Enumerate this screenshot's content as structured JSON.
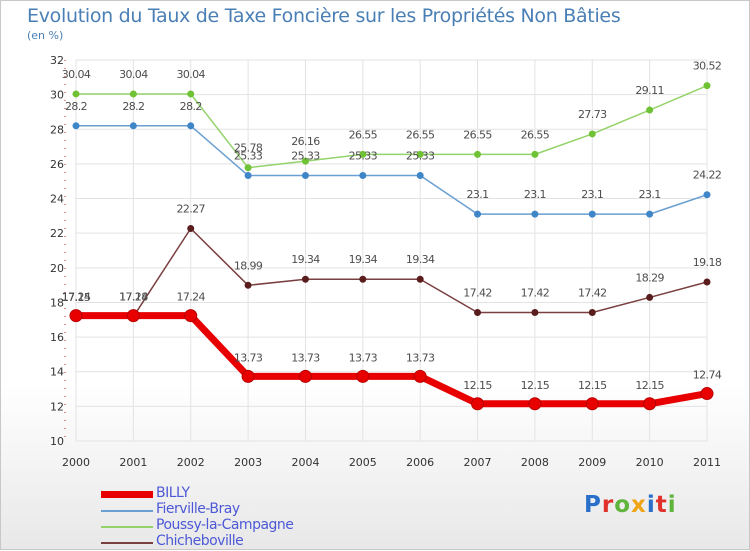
{
  "title": "Evolution du Taux de Taxe Foncière sur les Propriétés Non Bâties",
  "subtitle": "(en %)",
  "logo": {
    "text": "Proxiti",
    "letter_colors": [
      "#2a6fc9",
      "#e0312c",
      "#5fb43b",
      "#f0a516",
      "#2a6fc9",
      "#e0312c",
      "#5fb43b"
    ]
  },
  "chart_data": {
    "type": "line",
    "title": "Evolution du Taux de Taxe Foncière sur les Propriétés Non Bâties",
    "ylabel": "(en %)",
    "xlabel": "",
    "x": [
      "2000",
      "2001",
      "2002",
      "2003",
      "2004",
      "2005",
      "2006",
      "2007",
      "2008",
      "2009",
      "2010",
      "2011"
    ],
    "ylim": [
      10,
      32
    ],
    "yticks": [
      "10",
      "12",
      "14",
      "16",
      "18",
      "20",
      "22",
      "24",
      "26",
      "28",
      "30",
      "32"
    ],
    "series": [
      {
        "name": "BILLY",
        "color": "#e80000",
        "marker": "#b80000",
        "thick": true,
        "values": [
          17.24,
          17.24,
          17.24,
          13.73,
          13.73,
          13.73,
          13.73,
          12.15,
          12.15,
          12.15,
          12.15,
          12.74
        ],
        "labels": [
          "17.24",
          "17.24",
          "17.24",
          "13.73",
          "13.73",
          "13.73",
          "13.73",
          "12.15",
          "12.15",
          "12.15",
          "12.15",
          "12.74"
        ]
      },
      {
        "name": "Fierville-Bray",
        "color": "#6a9fd1",
        "marker": "#3f86c8",
        "thick": false,
        "values": [
          28.2,
          28.2,
          28.2,
          25.33,
          25.33,
          25.33,
          25.33,
          23.1,
          23.1,
          23.1,
          23.1,
          24.22
        ],
        "labels": [
          "28.2",
          "28.2",
          "28.2",
          "25.33",
          "25.33",
          "25.33",
          "25.33",
          "23.1",
          "23.1",
          "23.1",
          "23.1",
          "24.22"
        ]
      },
      {
        "name": "Poussy-la-Campagne",
        "color": "#93d36a",
        "marker": "#6fc234",
        "thick": false,
        "values": [
          30.04,
          30.04,
          30.04,
          25.78,
          26.16,
          26.55,
          26.55,
          26.55,
          26.55,
          27.73,
          29.11,
          30.52
        ],
        "labels": [
          "30.04",
          "30.04",
          "30.04",
          "25.78",
          "26.16",
          "26.55",
          "26.55",
          "26.55",
          "26.55",
          "27.73",
          "29.11",
          "30.52"
        ]
      },
      {
        "name": "Chicheboville",
        "color": "#7a3f3f",
        "marker": "#5a1d1d",
        "thick": false,
        "values": [
          17.15,
          17.18,
          22.27,
          18.99,
          19.34,
          19.34,
          19.34,
          17.42,
          17.42,
          17.42,
          18.29,
          19.18
        ],
        "labels": [
          "17.15",
          "17.18",
          "22.27",
          "18.99",
          "19.34",
          "19.34",
          "19.34",
          "17.42",
          "17.42",
          "17.42",
          "18.29",
          "19.18"
        ]
      }
    ]
  }
}
